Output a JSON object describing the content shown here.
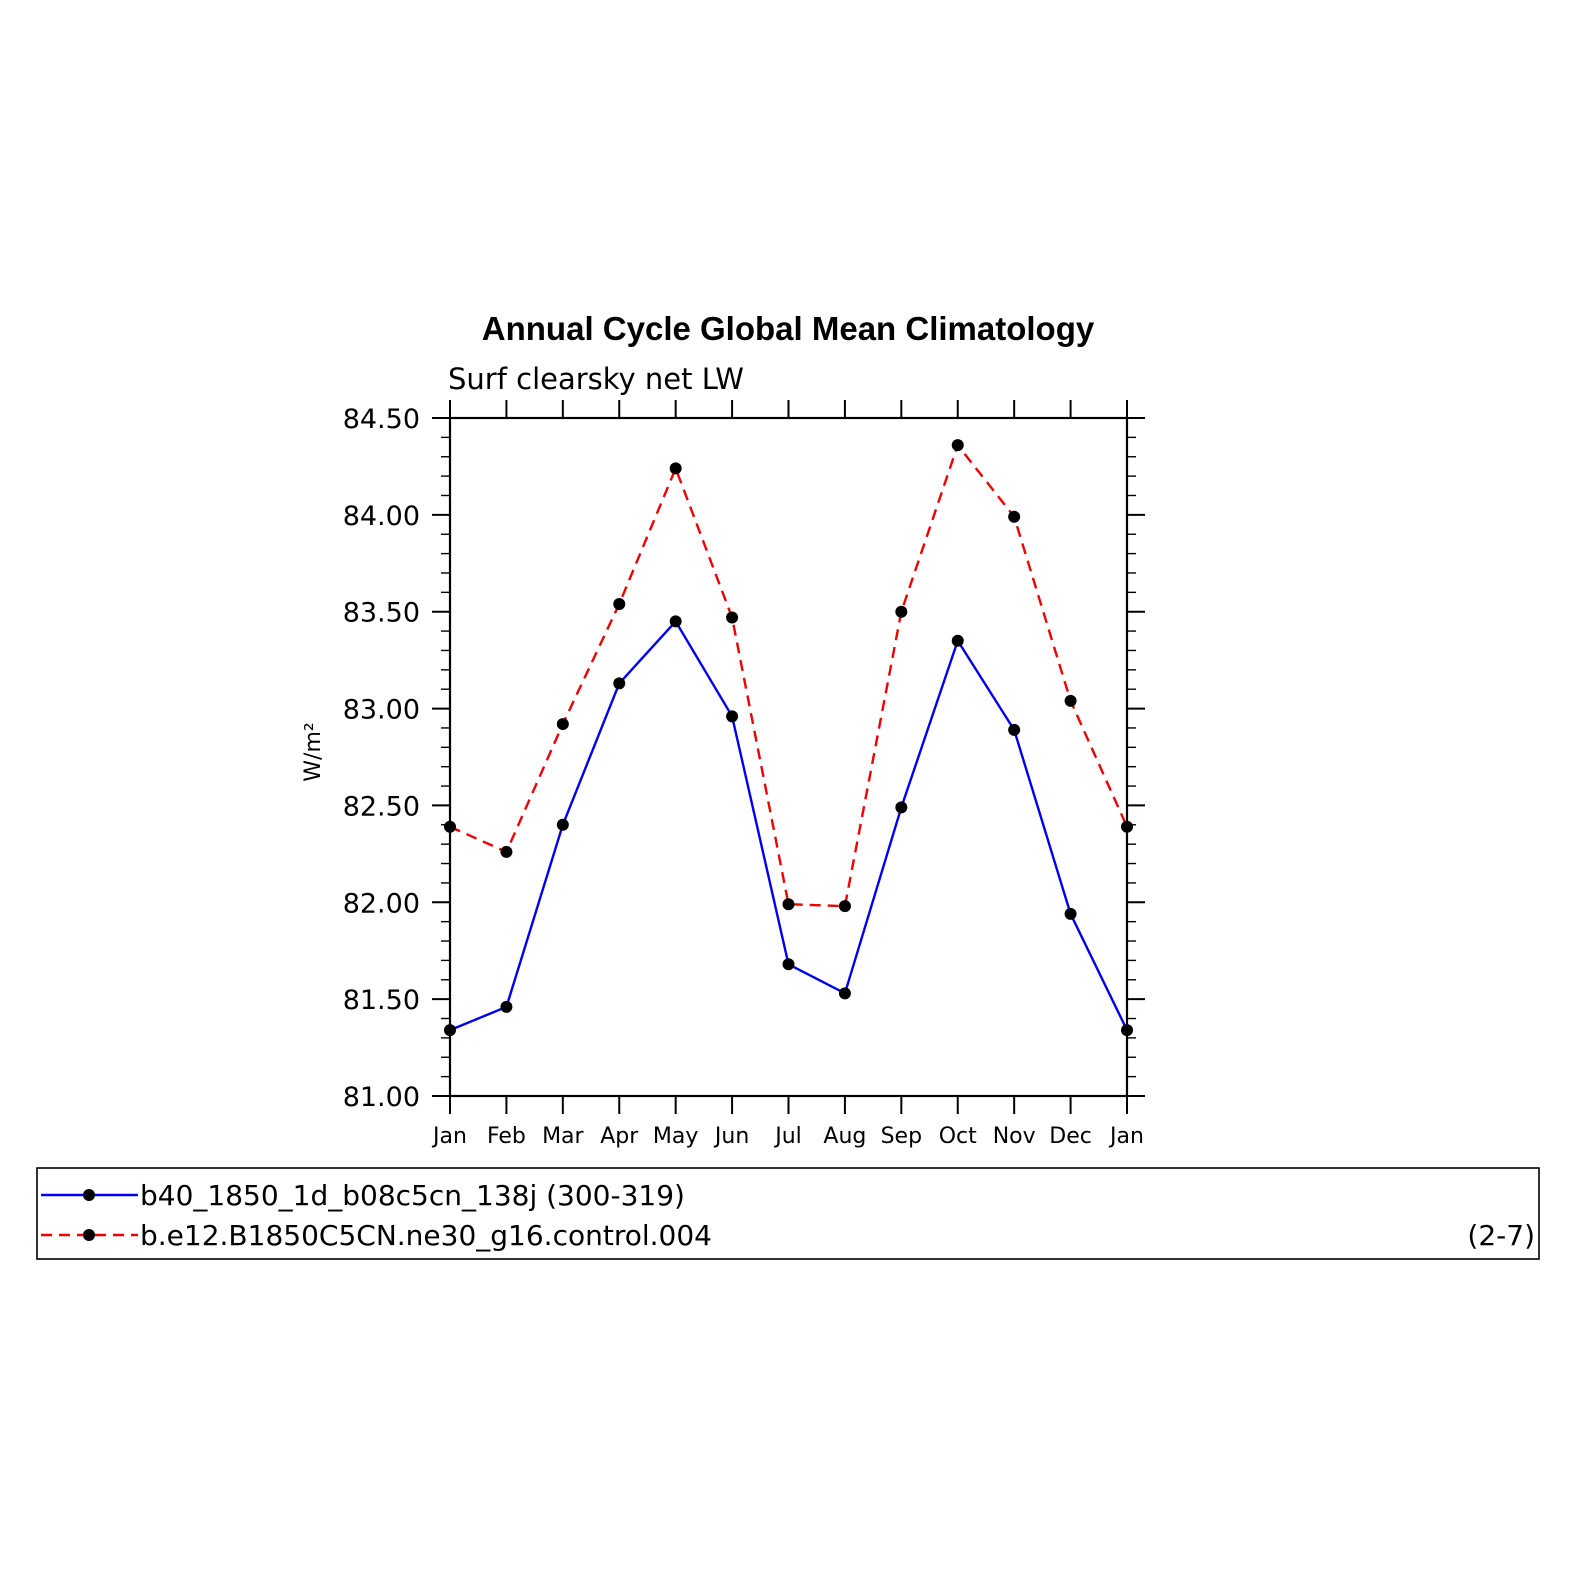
{
  "chart_data": {
    "type": "line",
    "title": "Annual Cycle Global Mean Climatology",
    "subtitle": "Surf clearsky net LW",
    "ylabel": "W/m²",
    "xlabel": "",
    "categories": [
      "Jan",
      "Feb",
      "Mar",
      "Apr",
      "May",
      "Jun",
      "Jul",
      "Aug",
      "Sep",
      "Oct",
      "Nov",
      "Dec",
      "Jan"
    ],
    "ylim": [
      81.0,
      84.5
    ],
    "yticks": [
      "81.00",
      "81.50",
      "82.00",
      "82.50",
      "83.00",
      "83.50",
      "84.00",
      "84.50"
    ],
    "grid": false,
    "legend_position": "bottom",
    "series": [
      {
        "name": "b40_1850_1d_b08c5cn_138j (300-319)",
        "color": "#0000ee",
        "dash": "solid",
        "values": [
          81.34,
          81.46,
          82.4,
          83.13,
          83.45,
          82.96,
          81.68,
          81.53,
          82.49,
          83.35,
          82.89,
          81.94,
          81.34
        ]
      },
      {
        "name": "b.e12.B1850C5CN.ne30_g16.control.004",
        "color": "#ee0000",
        "dash": "dashed",
        "values": [
          82.39,
          82.26,
          82.92,
          83.54,
          84.24,
          83.47,
          81.99,
          81.98,
          83.5,
          84.36,
          83.99,
          83.04,
          82.39
        ]
      }
    ],
    "annotation": "(2-7)"
  }
}
